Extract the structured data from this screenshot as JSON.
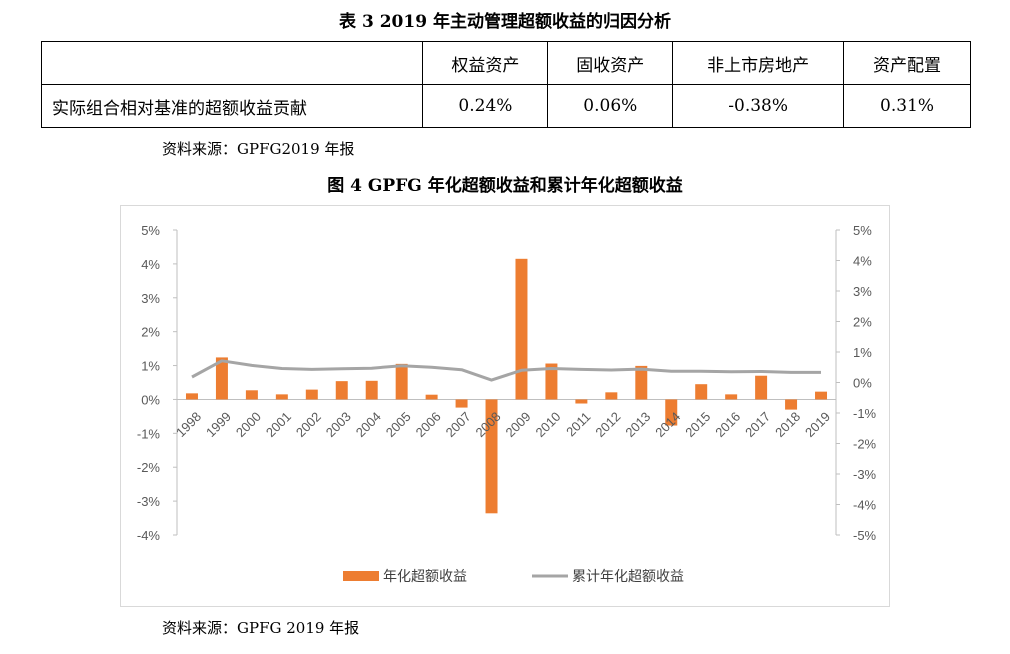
{
  "table": {
    "title": "表 3   2019 年主动管理超额收益的归因分析",
    "headers": [
      "",
      "权益资产",
      "固收资产",
      "非上市房地产",
      "资产配置"
    ],
    "row": {
      "label": "实际组合相对基准的超额收益贡献",
      "values": [
        "0.24%",
        "0.06%",
        "-0.38%",
        "0.31%"
      ]
    },
    "source": "资料来源：GPFG2019 年报"
  },
  "figure": {
    "title": "图 4   GPFG 年化超额收益和累计年化超额收益",
    "source": "资料来源：GPFG 2019 年报"
  },
  "chart_data": {
    "type": "bar+line",
    "categories": [
      "1998",
      "1999",
      "2000",
      "2001",
      "2002",
      "2003",
      "2004",
      "2005",
      "2006",
      "2007",
      "2008",
      "2009",
      "2010",
      "2011",
      "2012",
      "2013",
      "2014",
      "2015",
      "2016",
      "2017",
      "2018",
      "2019"
    ],
    "series": [
      {
        "name": "年化超额收益",
        "type": "bar",
        "axis": "left",
        "color": "#ed7d31",
        "values": [
          0.18,
          1.24,
          0.27,
          0.15,
          0.29,
          0.54,
          0.55,
          1.05,
          0.14,
          -0.24,
          -3.36,
          4.15,
          1.06,
          -0.12,
          0.21,
          0.99,
          -0.77,
          0.45,
          0.15,
          0.7,
          -0.3,
          0.23
        ]
      },
      {
        "name": "累计年化超额收益",
        "type": "line",
        "axis": "right",
        "color": "#a5a5a5",
        "values": [
          0.18,
          0.71,
          0.56,
          0.46,
          0.43,
          0.45,
          0.47,
          0.55,
          0.5,
          0.42,
          0.08,
          0.4,
          0.46,
          0.43,
          0.41,
          0.44,
          0.37,
          0.37,
          0.35,
          0.36,
          0.33,
          0.33
        ]
      }
    ],
    "left_axis": {
      "min": -4,
      "max": 5,
      "step": 1,
      "tick_labels": [
        "5%",
        "4%",
        "3%",
        "2%",
        "1%",
        "0%",
        "-1%",
        "-2%",
        "-3%",
        "-4%"
      ]
    },
    "right_axis": {
      "min": -5,
      "max": 5,
      "step": 1,
      "tick_labels": [
        "5%",
        "4%",
        "3%",
        "2%",
        "1%",
        "0%",
        "-1%",
        "-2%",
        "-3%",
        "-4%",
        "-5%"
      ]
    },
    "grid": false,
    "legend": "bottom"
  }
}
